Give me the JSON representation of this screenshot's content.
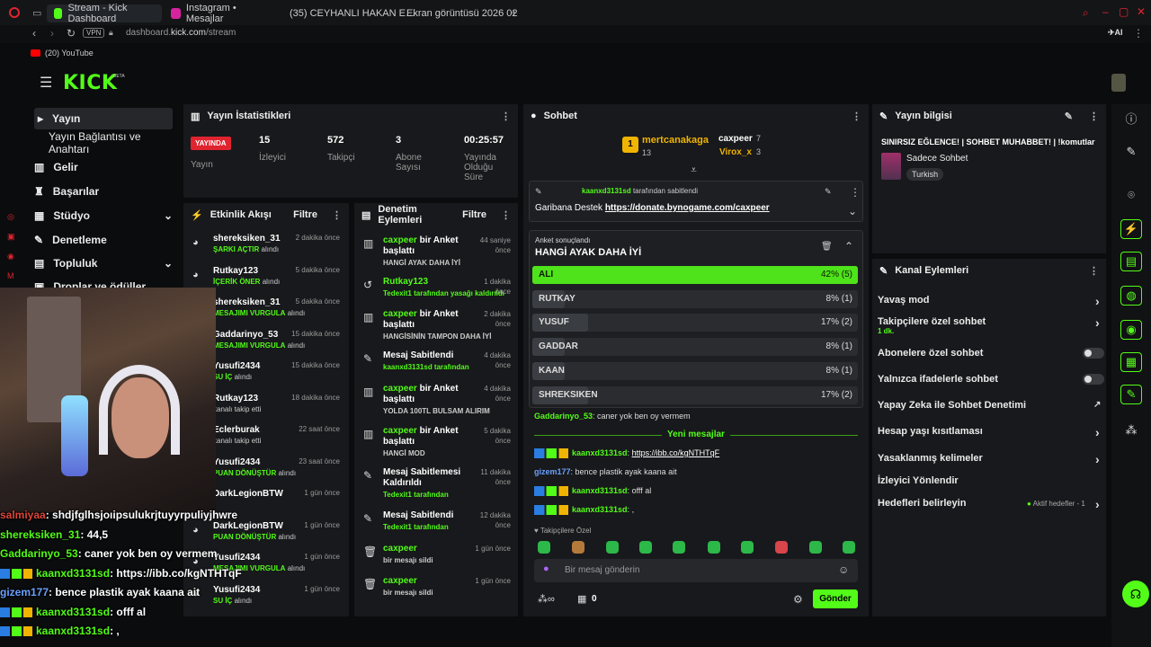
{
  "tabs": [
    {
      "label": "Stream - Kick Dashboard",
      "active": true,
      "color": "#53fc18"
    },
    {
      "label": "Instagram • Mesajlar",
      "active": false,
      "color": "#d6249f"
    },
    {
      "label": "(35) CEYHANLI HAKAN E…",
      "active": false,
      "color": "#ff0000"
    },
    {
      "label": "Ekran görüntüsü 2026 02",
      "active": false,
      "color": "#2a7de1"
    }
  ],
  "url": {
    "prefix": "dashboard.",
    "host": "kick.com",
    "path": "/stream",
    "vpn": "VPN"
  },
  "bookmark": "(20) YouTube",
  "logo": "KICK",
  "logo_beta": "BETA",
  "sidebar": {
    "items": [
      {
        "label": "Yayın",
        "icon": "video-icon"
      },
      {
        "label": "Yayın Bağlantısı ve Anahtarı",
        "icon": ""
      },
      {
        "label": "Gelir",
        "icon": "chart-icon"
      },
      {
        "label": "Başarılar",
        "icon": "trophy-icon"
      },
      {
        "label": "Stüdyo",
        "icon": "studio-icon"
      },
      {
        "label": "Denetleme",
        "icon": "wrench-icon"
      },
      {
        "label": "Topluluk",
        "icon": "community-icon"
      },
      {
        "label": "Droplar ve ödüller",
        "icon": "gift-icon"
      }
    ]
  },
  "stats": {
    "title": "Yayın İstatistikleri",
    "badge": "YAYINDA",
    "badge_label": "Yayın",
    "items": [
      {
        "value": "15",
        "label": "İzleyici"
      },
      {
        "value": "572",
        "label": "Takipçi"
      },
      {
        "value": "3",
        "label": "Abone Sayısı"
      },
      {
        "value": "00:25:57",
        "label": "Yayında Olduğu Süre"
      }
    ]
  },
  "activity": {
    "title": "Etkinlik Akışı",
    "filter": "Filtre",
    "items": [
      {
        "name": "shereksiken_31",
        "sub": "ŞARKI AÇTIR",
        "subsuffix": "alındı",
        "time": "2 dakika önce"
      },
      {
        "name": "Rutkay123",
        "sub": "İÇERİK ÖNER",
        "subsuffix": "alındı",
        "time": "5 dakika önce"
      },
      {
        "name": "shereksiken_31",
        "sub": "MESAJIMI VURGULA",
        "subsuffix": "alındı",
        "time": "5 dakika önce"
      },
      {
        "name": "Gaddarinyo_53",
        "sub": "MESAJIMI VURGULA",
        "subsuffix": "alındı",
        "time": "15 dakika önce"
      },
      {
        "name": "Yusufi2434",
        "sub": "SU İÇ",
        "subsuffix": "alındı",
        "time": "15 dakika önce"
      },
      {
        "name": "Rutkay123",
        "sub": "",
        "subsuffix": "kanalı takip etti",
        "time": "18 dakika önce"
      },
      {
        "name": "Eclerburak",
        "sub": "",
        "subsuffix": "kanalı takip etti",
        "time": "22 saat önce"
      },
      {
        "name": "Yusufi2434",
        "sub": "PUAN DÖNÜŞTÜR",
        "subsuffix": "alındı",
        "time": "23 saat önce"
      },
      {
        "name": "DarkLegionBTW",
        "sub": "",
        "subsuffix": "",
        "time": "1 gün önce"
      },
      {
        "name": "DarkLegionBTW",
        "sub": "PUAN DÖNÜŞTÜR",
        "subsuffix": "alındı",
        "time": "1 gün önce"
      },
      {
        "name": "Yusufi2434",
        "sub": "MESAJIMI VURGULA",
        "subsuffix": "alındı",
        "time": "1 gün önce"
      },
      {
        "name": "Yusufi2434",
        "sub": "SU İÇ",
        "subsuffix": "alındı",
        "time": "1 gün önce"
      }
    ]
  },
  "moderation": {
    "title": "Denetim Eylemleri",
    "filter": "Filtre",
    "items": [
      {
        "actor": "caxpeer",
        "action": "bir Anket başlattı",
        "sub": "HANGİ AYAK DAHA İYİ",
        "time": "44 saniye önce"
      },
      {
        "actor": "Rutkay123",
        "action": "",
        "sub": "Tedexit1 tarafından yasağı kaldırıldı",
        "time": "1 dakika önce"
      },
      {
        "actor": "caxpeer",
        "action": "bir Anket başlattı",
        "sub": "HANGİSİNİN TAMPON DAHA İYİ",
        "time": "2 dakika önce"
      },
      {
        "actor": "",
        "action": "Mesaj Sabitlendi",
        "sub": "kaanxd3131sd tarafından",
        "time": "4 dakika önce"
      },
      {
        "actor": "caxpeer",
        "action": "bir Anket başlattı",
        "sub": "YOLDA 100TL BULSAM ALIRIM",
        "time": "4 dakika önce"
      },
      {
        "actor": "caxpeer",
        "action": "bir Anket başlattı",
        "sub": "HANGİ MOD",
        "time": "5 dakika önce"
      },
      {
        "actor": "",
        "action": "Mesaj Sabitlemesi Kaldırıldı",
        "sub": "Tedexit1 tarafından",
        "time": "11 dakika önce"
      },
      {
        "actor": "",
        "action": "Mesaj Sabitlendi",
        "sub": "Tedexit1 tarafından",
        "time": "12 dakika önce"
      },
      {
        "actor": "caxpeer",
        "action": "",
        "sub": "bir mesajı sildi",
        "time": "1 gün önce"
      },
      {
        "actor": "caxpeer",
        "action": "",
        "sub": "bir mesajı sildi",
        "time": "1 gün önce"
      }
    ]
  },
  "chat": {
    "title": "Sohbet",
    "top": [
      {
        "name": "mertcanakaga",
        "count": "13"
      },
      {
        "name": "caxpeer",
        "count": "7"
      },
      {
        "name": "Virox_x",
        "count": "3"
      }
    ],
    "pinned": {
      "by": "kaanxd3131sd",
      "by_suffix": "tarafından sabitlendi",
      "text": "Garibana Destek",
      "link": "https://donate.bynogame.com/caxpeer"
    },
    "poll": {
      "header": "Anket sonuçlandı",
      "question": "HANGİ AYAK DAHA İYİ",
      "options": [
        {
          "label": "ALI",
          "pct": "42% (5)",
          "frac": 0.42,
          "winner": true
        },
        {
          "label": "RUTKAY",
          "pct": "8% (1)",
          "frac": 0.08,
          "winner": false
        },
        {
          "label": "YUSUF",
          "pct": "17% (2)",
          "frac": 0.17,
          "winner": false
        },
        {
          "label": "GADDAR",
          "pct": "8% (1)",
          "frac": 0.08,
          "winner": false
        },
        {
          "label": "KAAN",
          "pct": "8% (1)",
          "frac": 0.08,
          "winner": false
        },
        {
          "label": "SHREKSIKEN",
          "pct": "17% (2)",
          "frac": 0.17,
          "winner": false
        }
      ]
    },
    "messages": [
      {
        "user": "Gaddarinyo_53",
        "text": "caner yok ben oy vermem",
        "color": "#53fc18"
      },
      {
        "user": "kaanxd3131sd",
        "text": "https://ibb.co/kgNTHTqF",
        "color": "#53fc18",
        "link": true
      },
      {
        "user": "gizem177",
        "text": "bence plastik ayak kaana ait",
        "color": "#6aa0ff"
      },
      {
        "user": "kaanxd3131sd",
        "text": "offf al",
        "color": "#53fc18"
      },
      {
        "user": "kaanxd3131sd",
        "text": ",",
        "color": "#53fc18"
      }
    ],
    "new_messages": "Yeni mesajlar",
    "followers_only": "Takipçilere Özel",
    "input_placeholder": "Bir mesaj gönderin",
    "points": "0",
    "send": "Gönder"
  },
  "info": {
    "title": "Yayın bilgisi",
    "stream_title": "SINIRSIZ EĞLENCE! | SOHBET MUHABBET! | !komutlar",
    "category": "Sadece Sohbet",
    "tag": "Turkish"
  },
  "actions": {
    "title": "Kanal Eylemleri",
    "items": [
      {
        "label": "Yavaş mod",
        "kind": "chevron",
        "sub": ""
      },
      {
        "label": "Takipçilere özel sohbet",
        "kind": "chevron",
        "sub": "1 dk."
      },
      {
        "label": "Abonelere özel sohbet",
        "kind": "toggle",
        "sub": ""
      },
      {
        "label": "Yalnızca ifadelerle sohbet",
        "kind": "toggle",
        "sub": ""
      },
      {
        "label": "Yapay Zeka ile Sohbet Denetimi",
        "kind": "external",
        "sub": ""
      },
      {
        "label": "Hesap yaşı kısıtlaması",
        "kind": "chevron",
        "sub": ""
      },
      {
        "label": "Yasaklanmış kelimeler",
        "kind": "chevron",
        "sub": ""
      },
      {
        "label": "İzleyici Yönlendir",
        "kind": "none",
        "sub": ""
      },
      {
        "label": "Hedefleri belirleyin",
        "kind": "goal",
        "sub": "Aktif hedefler - 1"
      }
    ]
  },
  "overlay_chat": [
    {
      "user": "salmiyaa",
      "text": ": shdjfglhsjoıipsulukrjtuyyrpuliyjhwre",
      "color": "#e0463a"
    },
    {
      "user": "shereksiken_31",
      "text": ": 44,5",
      "color": "#53fc18"
    },
    {
      "user": "Gaddarinyo_53",
      "text": ": caner yok ben oy vermem",
      "color": "#53fc18"
    },
    {
      "user": "kaanxd3131sd",
      "text": ": https://ibb.co/kgNTHTqF",
      "color": "#53fc18"
    },
    {
      "user": "gizem177",
      "text": ": bence plastik ayak kaana ait",
      "color": "#6aa0ff"
    },
    {
      "user": "kaanxd3131sd",
      "text": ": offf al",
      "color": "#53fc18"
    },
    {
      "user": "kaanxd3131sd",
      "text": ": ,",
      "color": "#53fc18"
    }
  ]
}
